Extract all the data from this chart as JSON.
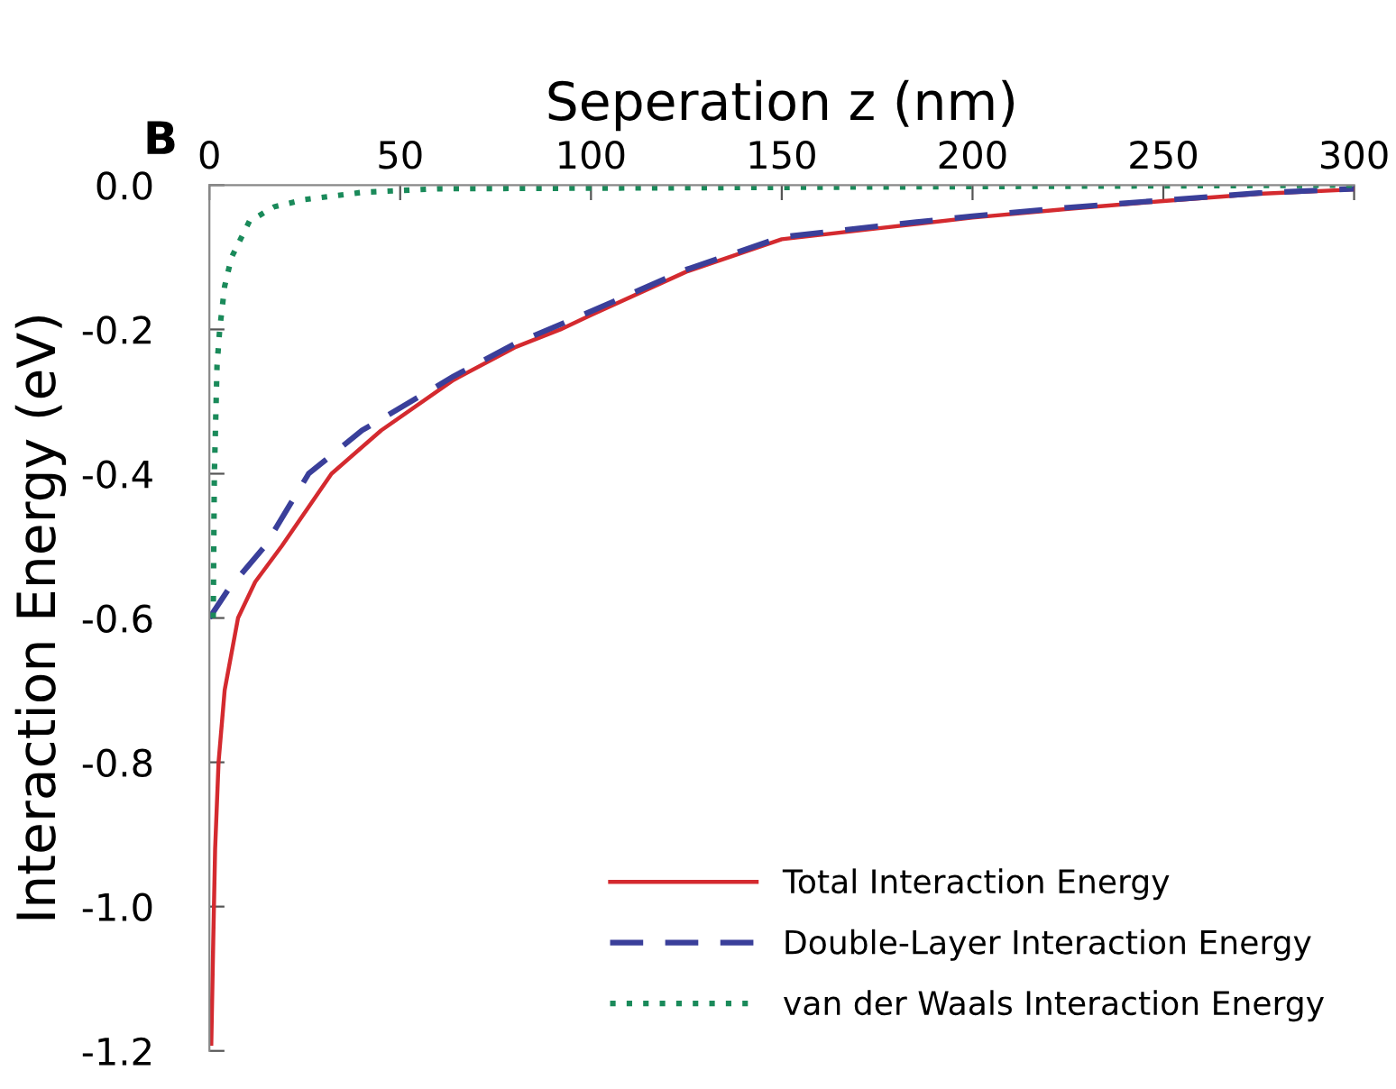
{
  "chart_data": {
    "type": "line",
    "xlabel": "Seperation z (nm)",
    "ylabel": "Interaction Energy (eV)",
    "annotations": [
      "B"
    ],
    "xlim": [
      0,
      300
    ],
    "xticks": [
      0,
      50,
      100,
      150,
      200,
      250,
      300
    ],
    "ylim": [
      -1.2,
      0.0
    ],
    "yticks": [
      {
        "value": -1.2,
        "label": "-1.2"
      },
      {
        "value": -1.0,
        "label": "-1.0"
      },
      {
        "value": -0.8,
        "label": "-0.8"
      },
      {
        "value": -0.6,
        "label": "-0.6"
      },
      {
        "value": -0.4,
        "label": "-0.4"
      },
      {
        "value": -0.2,
        "label": "-0.2"
      },
      {
        "value": 0.0,
        "label": "0.0"
      }
    ],
    "grid": false,
    "legend": "bottom right",
    "series": [
      {
        "name": "Total Interaction Energy",
        "color": "#d42a2f",
        "line_style": "solid",
        "x": [
          0.5,
          1,
          1.5,
          2.4,
          4,
          7.5,
          12,
          19,
          32,
          45,
          64,
          80,
          92,
          100,
          125,
          150,
          175,
          200,
          225,
          250,
          275,
          300
        ],
        "values": [
          -1.19,
          -1.05,
          -0.92,
          -0.8,
          -0.7,
          -0.6,
          -0.55,
          -0.5,
          -0.4,
          -0.34,
          -0.27,
          -0.225,
          -0.2,
          -0.18,
          -0.12,
          -0.075,
          -0.06,
          -0.045,
          -0.033,
          -0.022,
          -0.012,
          -0.006
        ]
      },
      {
        "name": "Double-Layer Interaction Energy",
        "color": "#3a3f9a",
        "line_style": "dashed",
        "x": [
          0,
          5,
          14.6,
          26,
          40,
          64,
          80,
          100,
          125,
          150,
          175,
          200,
          225,
          250,
          275,
          300
        ],
        "values": [
          -0.6,
          -0.56,
          -0.5,
          -0.4,
          -0.34,
          -0.265,
          -0.22,
          -0.175,
          -0.117,
          -0.072,
          -0.057,
          -0.043,
          -0.031,
          -0.021,
          -0.011,
          -0.005
        ]
      },
      {
        "name": "van der Waals Interaction Energy",
        "color": "#1a8a5a",
        "line_style": "dotted",
        "x": [
          1,
          1.3,
          2,
          2.7,
          4,
          5.8,
          10.5,
          17,
          25,
          40,
          60,
          300
        ],
        "values": [
          -0.6,
          -0.4,
          -0.25,
          -0.2,
          -0.14,
          -0.1,
          -0.05,
          -0.03,
          -0.02,
          -0.01,
          -0.005,
          0.0
        ]
      }
    ]
  }
}
